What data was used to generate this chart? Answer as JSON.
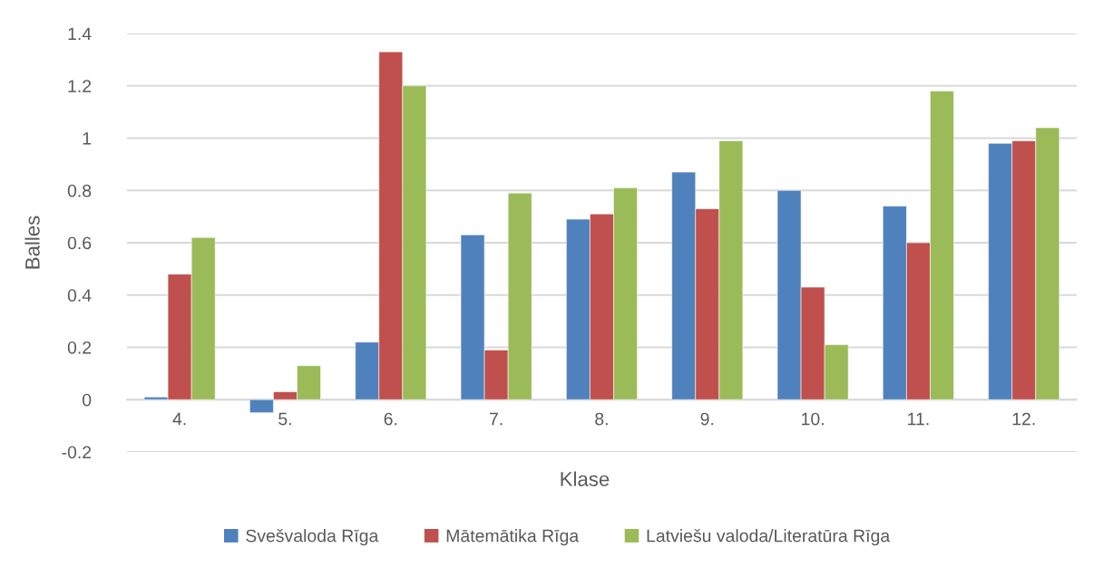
{
  "chart_data": {
    "type": "bar",
    "xlabel": "Klase",
    "ylabel": "Balles",
    "categories": [
      "4.",
      "5.",
      "6.",
      "7.",
      "8.",
      "9.",
      "10.",
      "11.",
      "12."
    ],
    "series": [
      {
        "name": "Svešvaloda Rīga",
        "color": "#4f81bd",
        "values": [
          0.01,
          -0.05,
          0.22,
          0.63,
          0.69,
          0.87,
          0.8,
          0.74,
          0.98
        ]
      },
      {
        "name": "Mātemātika Rīga",
        "color": "#c0504d",
        "values": [
          0.48,
          0.03,
          1.33,
          0.19,
          0.71,
          0.73,
          0.43,
          0.6,
          0.99
        ]
      },
      {
        "name": "Latviešu valoda/Literatūra Rīga",
        "color": "#9bbb59",
        "values": [
          0.62,
          0.13,
          1.2,
          0.79,
          0.81,
          0.99,
          0.21,
          1.18,
          1.04
        ]
      }
    ],
    "ylim": [
      -0.2,
      1.4
    ],
    "yticks": [
      -0.2,
      0,
      0.2,
      0.4,
      0.6,
      0.8,
      1,
      1.2,
      1.4
    ],
    "grid": "y",
    "legend": "bottom"
  }
}
